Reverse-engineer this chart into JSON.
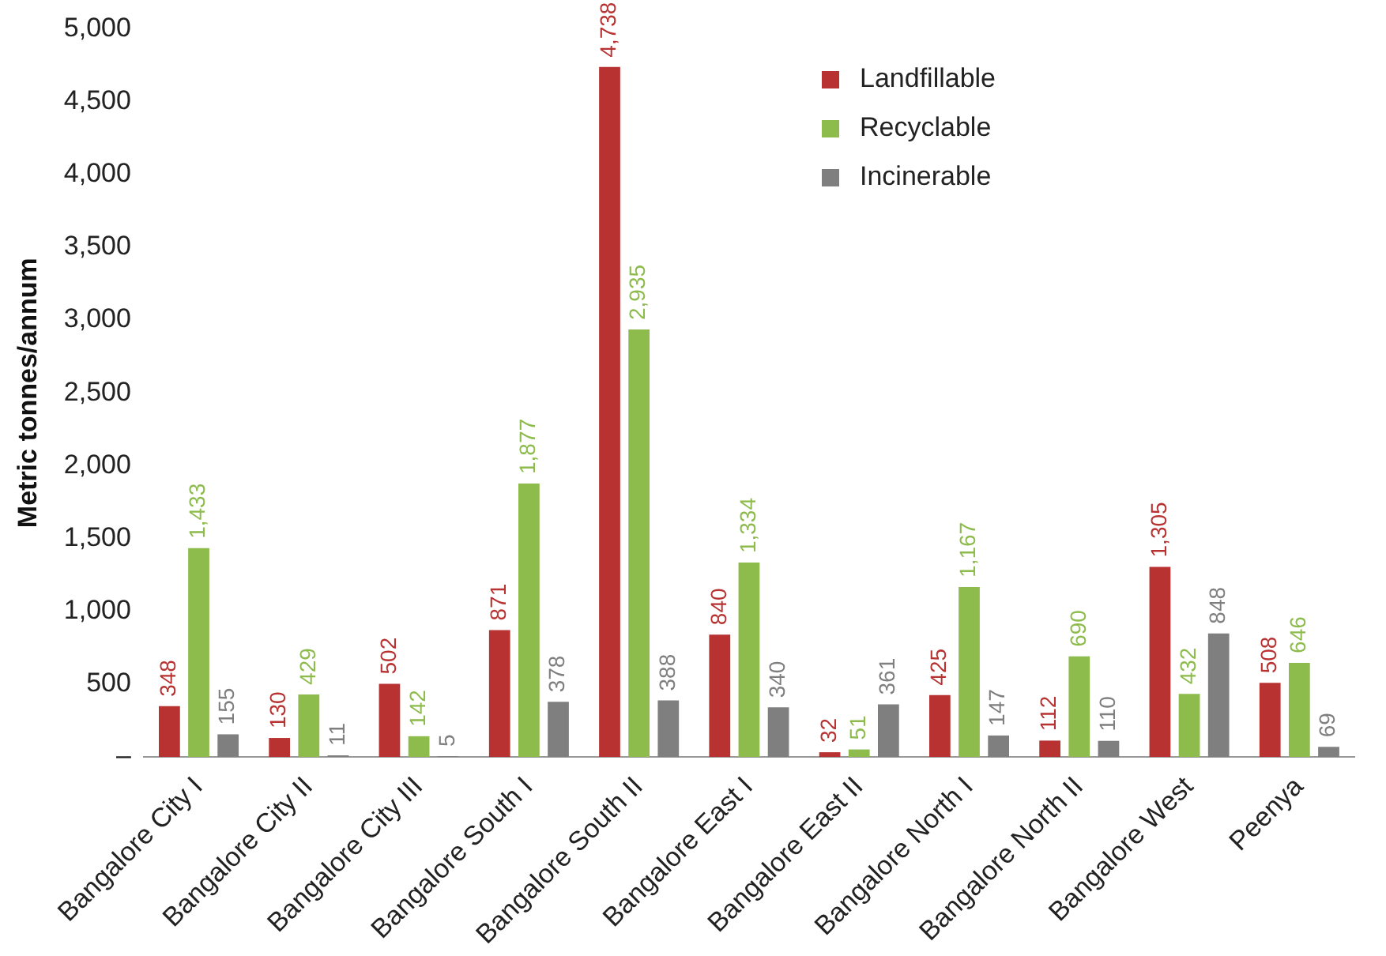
{
  "chart_data": {
    "type": "bar",
    "ylabel": "Metric tonnes/annum",
    "categories": [
      "Bangalore City I",
      "Bangalore City II",
      "Bangalore City III",
      "Bangalore South I",
      "Bangalore South II",
      "Bangalore East I",
      "Bangalore East II",
      "Bangalore North I",
      "Bangalore North II",
      "Bangalore West",
      "Peenya"
    ],
    "series": [
      {
        "name": "Landfillable",
        "color": "#b83232",
        "values": [
          348,
          130,
          502,
          871,
          4738,
          840,
          32,
          425,
          112,
          1305,
          508
        ],
        "value_labels": [
          "348",
          "130",
          "502",
          "871",
          "4,738",
          "840",
          "32",
          "425",
          "112",
          "1,305",
          "508"
        ]
      },
      {
        "name": "Recyclable",
        "color": "#8dbb4c",
        "values": [
          1433,
          429,
          142,
          1877,
          2935,
          1334,
          51,
          1167,
          690,
          432,
          646
        ],
        "value_labels": [
          "1,433",
          "429",
          "142",
          "1,877",
          "2,935",
          "1,334",
          "51",
          "1,167",
          "690",
          "432",
          "646"
        ]
      },
      {
        "name": "Incinerable",
        "color": "#7f7f7f",
        "values": [
          155,
          11,
          5,
          378,
          388,
          340,
          361,
          147,
          110,
          848,
          69
        ],
        "value_labels": [
          "155",
          "11",
          "5",
          "378",
          "388",
          "340",
          "361",
          "147",
          "110",
          "848",
          "69"
        ]
      }
    ],
    "ylim": [
      0,
      5000
    ],
    "yticks": [
      {
        "value": 0,
        "label": "–"
      },
      500,
      {
        "value": 1000,
        "label": "1,000"
      },
      {
        "value": 1500,
        "label": "1,500"
      },
      {
        "value": 2000,
        "label": "2,000"
      },
      {
        "value": 2500,
        "label": "2,500"
      },
      {
        "value": 3000,
        "label": "3,000"
      },
      {
        "value": 3500,
        "label": "3,500"
      },
      {
        "value": 4000,
        "label": "4,000"
      },
      {
        "value": 4500,
        "label": "4,500"
      },
      {
        "value": 5000,
        "label": "5,000"
      }
    ],
    "grid": false,
    "legend": "top right"
  }
}
